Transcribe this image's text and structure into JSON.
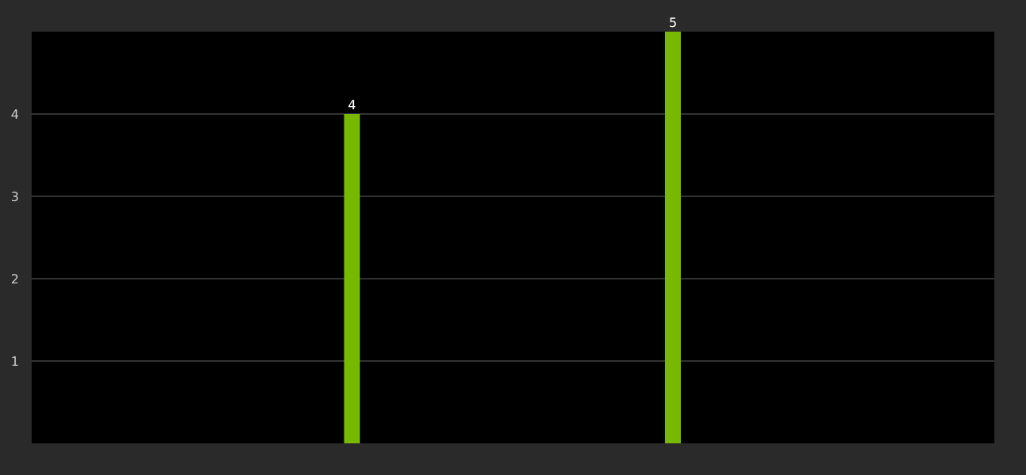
{
  "chart_data": {
    "type": "bar",
    "categories": [
      null,
      null,
      null,
      null
    ],
    "values": [
      null,
      4,
      5,
      null
    ],
    "color": "#76b900",
    "ylim": [
      0,
      5
    ],
    "yticks": [
      1,
      2,
      3,
      4
    ],
    "grid": "y",
    "data_labels": true,
    "tick_labels": "y"
  }
}
